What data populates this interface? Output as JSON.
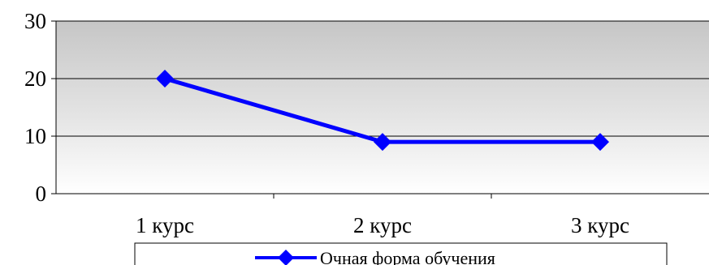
{
  "chart_data": {
    "type": "line",
    "title": "",
    "xlabel": "",
    "ylabel": "",
    "categories": [
      "1 курс",
      "2 курс",
      "3 курс"
    ],
    "series": [
      {
        "name": "Очная форма обучения",
        "values": [
          20,
          9,
          9
        ],
        "color": "#0000ff",
        "marker": "diamond"
      }
    ],
    "ylim": [
      0,
      30
    ],
    "yticks": [
      0,
      10,
      20,
      30
    ],
    "ytick_labels": [
      "0",
      "10",
      "20",
      "30"
    ],
    "grid": true,
    "legend": "bottom",
    "plot_background": "gradient-gray-to-white"
  }
}
